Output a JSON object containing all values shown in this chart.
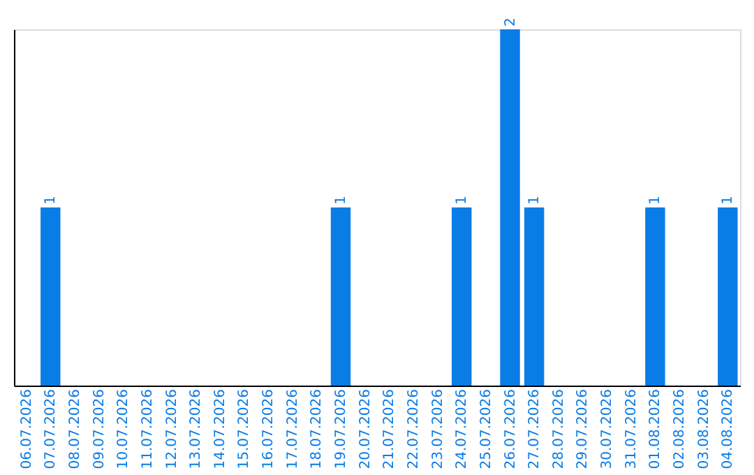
{
  "chart_data": {
    "type": "bar",
    "categories": [
      "06.07.2026",
      "07.07.2026",
      "08.07.2026",
      "09.07.2026",
      "10.07.2026",
      "11.07.2026",
      "12.07.2026",
      "13.07.2026",
      "14.07.2026",
      "15.07.2026",
      "16.07.2026",
      "17.07.2026",
      "18.07.2026",
      "19.07.2026",
      "20.07.2026",
      "21.07.2026",
      "22.07.2026",
      "23.07.2026",
      "24.07.2026",
      "25.07.2026",
      "26.07.2026",
      "27.07.2026",
      "28.07.2026",
      "29.07.2026",
      "30.07.2026",
      "31.07.2026",
      "01.08.2026",
      "02.08.2026",
      "03.08.2026",
      "04.08.2026"
    ],
    "values": [
      0,
      1,
      0,
      0,
      0,
      0,
      0,
      0,
      0,
      0,
      0,
      0,
      0,
      1,
      0,
      0,
      0,
      0,
      1,
      0,
      2,
      1,
      0,
      0,
      0,
      0,
      1,
      0,
      0,
      1
    ],
    "value_labels": [
      null,
      "1",
      null,
      null,
      null,
      null,
      null,
      null,
      null,
      null,
      null,
      null,
      null,
      "1",
      null,
      null,
      null,
      null,
      "1",
      null,
      "2",
      "1",
      null,
      null,
      null,
      null,
      "1",
      null,
      null,
      "1"
    ],
    "color": "#0a7ce6",
    "tick_labels": "x",
    "grid": false
  }
}
